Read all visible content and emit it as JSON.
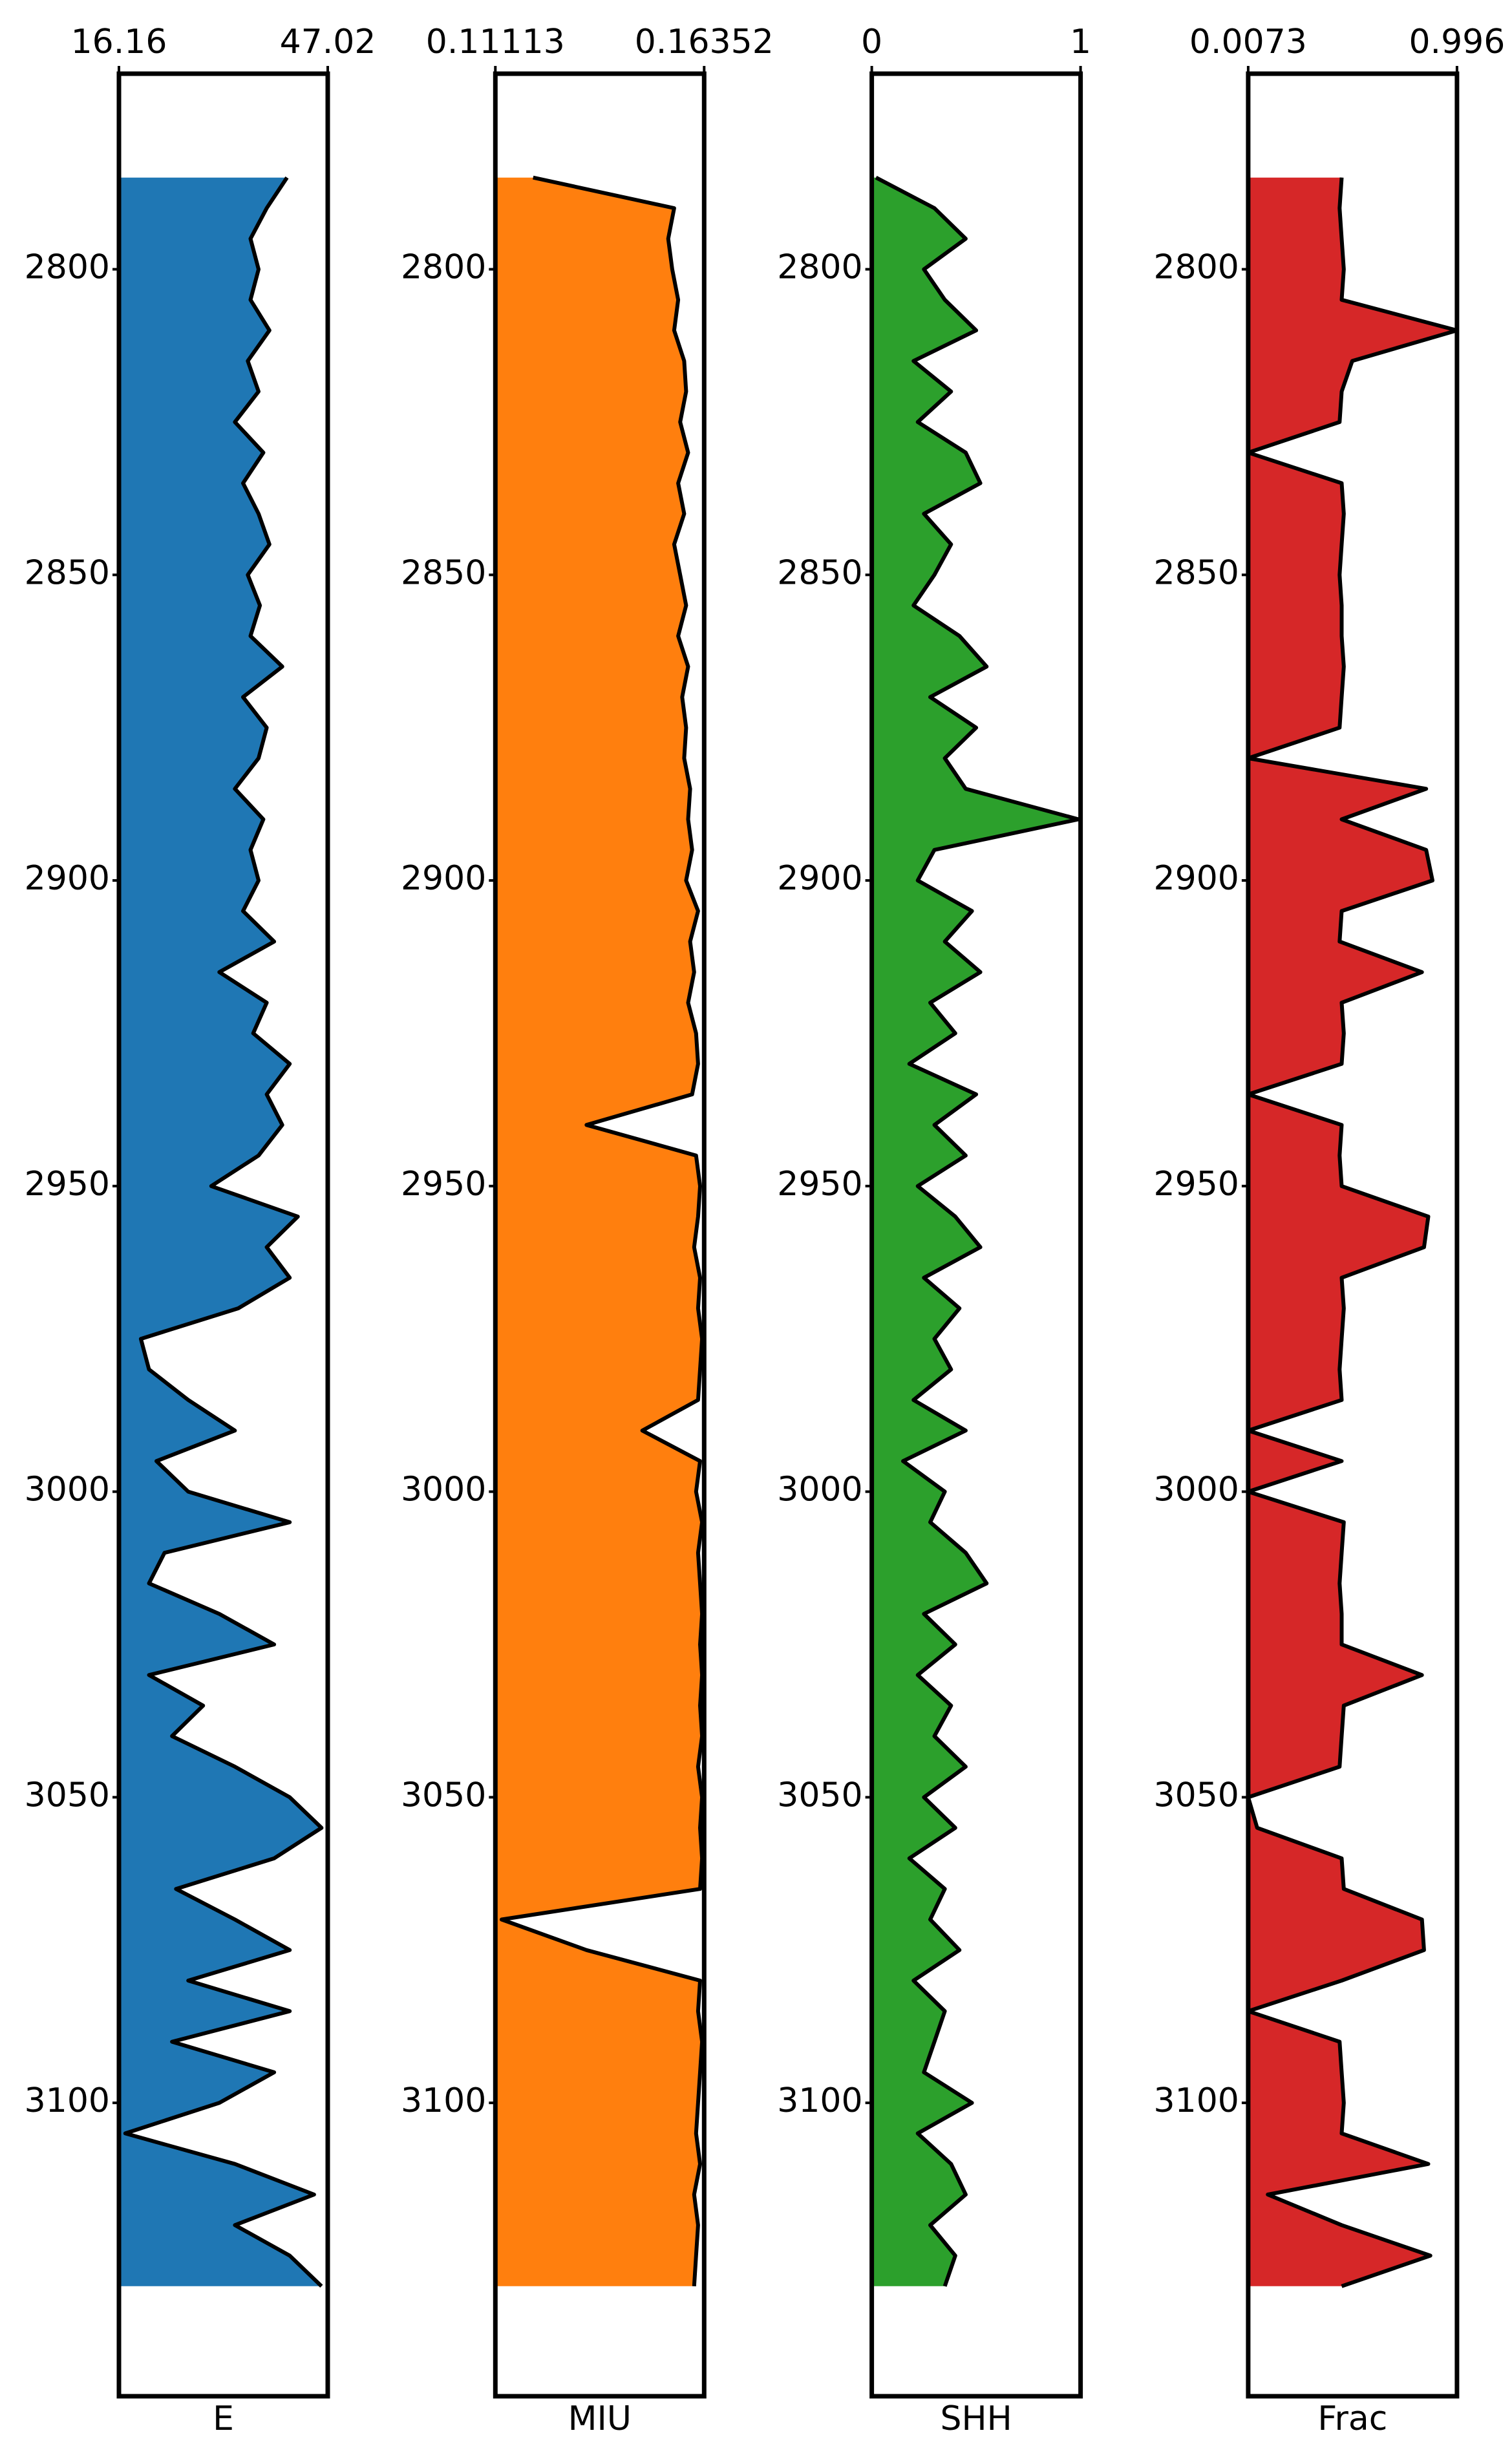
{
  "chart_data": {
    "type": "well-log",
    "y": [
      2785,
      2790,
      2795,
      2800,
      2805,
      2810,
      2815,
      2820,
      2825,
      2830,
      2835,
      2840,
      2845,
      2850,
      2855,
      2860,
      2865,
      2870,
      2875,
      2880,
      2885,
      2890,
      2895,
      2900,
      2905,
      2910,
      2915,
      2920,
      2925,
      2930,
      2935,
      2940,
      2945,
      2950,
      2955,
      2960,
      2965,
      2970,
      2975,
      2980,
      2985,
      2990,
      2995,
      3000,
      3005,
      3010,
      3015,
      3020,
      3025,
      3030,
      3035,
      3040,
      3045,
      3050,
      3055,
      3060,
      3065,
      3070,
      3075,
      3080,
      3085,
      3090,
      3095,
      3100,
      3105,
      3110,
      3115,
      3120,
      3125,
      3130
    ],
    "ylim": [
      2768,
      3148
    ],
    "y_inverted": true,
    "yticks": [
      2800,
      2850,
      2900,
      2950,
      3000,
      3050,
      3100
    ],
    "series": [
      {
        "name": "E",
        "color": "#1f77b4",
        "xlim": [
          16.16,
          47.02
        ],
        "xticks": [
          16.16,
          47.02
        ],
        "values": [
          41.0,
          38.0,
          35.6,
          36.8,
          35.6,
          38.4,
          35.2,
          36.8,
          33.3,
          37.5,
          34.5,
          36.8,
          38.4,
          35.2,
          37.0,
          35.6,
          40.3,
          34.5,
          38.0,
          36.8,
          33.3,
          37.5,
          35.6,
          36.8,
          34.5,
          39.1,
          31.0,
          38.0,
          36.0,
          41.4,
          38.0,
          40.3,
          36.8,
          29.8,
          42.6,
          38.0,
          41.4,
          33.8,
          19.4,
          20.6,
          26.4,
          33.3,
          21.7,
          26.4,
          41.4,
          22.9,
          20.6,
          31.0,
          39.1,
          20.6,
          28.6,
          24.0,
          33.3,
          41.4,
          46.1,
          39.1,
          24.6,
          33.3,
          41.4,
          26.4,
          41.4,
          24.0,
          39.1,
          31.0,
          17.1,
          33.3,
          45.0,
          33.3,
          41.4,
          46.1
        ]
      },
      {
        "name": "MIU",
        "color": "#ff7f0e",
        "xlim": [
          0.11113,
          0.16352
        ],
        "xticks": [
          0.11113,
          0.16352
        ],
        "values": [
          0.1206,
          0.156,
          0.1545,
          0.1555,
          0.157,
          0.156,
          0.1585,
          0.159,
          0.1575,
          0.1595,
          0.157,
          0.1585,
          0.156,
          0.1575,
          0.159,
          0.157,
          0.1595,
          0.158,
          0.159,
          0.1585,
          0.16,
          0.1595,
          0.1605,
          0.159,
          0.162,
          0.16,
          0.161,
          0.1595,
          0.1615,
          0.162,
          0.1605,
          0.134,
          0.1615,
          0.1625,
          0.162,
          0.161,
          0.1625,
          0.162,
          0.163,
          0.1625,
          0.162,
          0.148,
          0.1625,
          0.1615,
          0.163,
          0.162,
          0.1625,
          0.163,
          0.1625,
          0.163,
          0.1625,
          0.163,
          0.162,
          0.163,
          0.1625,
          0.163,
          0.1625,
          0.1127,
          0.134,
          0.1625,
          0.162,
          0.163,
          0.1625,
          0.162,
          0.1615,
          0.1625,
          0.161,
          0.162,
          0.1615,
          0.161
        ]
      },
      {
        "name": "SHH",
        "color": "#2ca02c",
        "xlim": [
          0,
          1
        ],
        "xticks": [
          0,
          1
        ],
        "values": [
          0.02,
          0.3,
          0.45,
          0.25,
          0.35,
          0.5,
          0.2,
          0.38,
          0.22,
          0.45,
          0.52,
          0.25,
          0.38,
          0.3,
          0.2,
          0.42,
          0.55,
          0.28,
          0.5,
          0.35,
          0.45,
          0.99,
          0.3,
          0.22,
          0.48,
          0.35,
          0.52,
          0.28,
          0.4,
          0.18,
          0.5,
          0.3,
          0.45,
          0.22,
          0.4,
          0.52,
          0.25,
          0.42,
          0.3,
          0.38,
          0.2,
          0.45,
          0.15,
          0.35,
          0.28,
          0.45,
          0.55,
          0.25,
          0.4,
          0.22,
          0.38,
          0.3,
          0.45,
          0.25,
          0.4,
          0.18,
          0.35,
          0.28,
          0.42,
          0.2,
          0.35,
          0.3,
          0.25,
          0.48,
          0.22,
          0.38,
          0.45,
          0.28,
          0.4,
          0.35
        ]
      },
      {
        "name": "Frac",
        "color": "#d62728",
        "xlim": [
          0.0073,
          0.996
        ],
        "xticks": [
          0.0073,
          0.996
        ],
        "values": [
          0.45,
          0.44,
          0.45,
          0.46,
          0.45,
          0.996,
          0.5,
          0.45,
          0.44,
          0.0073,
          0.45,
          0.46,
          0.45,
          0.44,
          0.45,
          0.45,
          0.46,
          0.45,
          0.44,
          0.0073,
          0.85,
          0.45,
          0.85,
          0.88,
          0.45,
          0.44,
          0.83,
          0.45,
          0.46,
          0.45,
          0.0073,
          0.45,
          0.44,
          0.45,
          0.86,
          0.84,
          0.45,
          0.46,
          0.45,
          0.44,
          0.45,
          0.0073,
          0.45,
          0.0073,
          0.46,
          0.45,
          0.44,
          0.45,
          0.45,
          0.83,
          0.46,
          0.45,
          0.44,
          0.0073,
          0.05,
          0.45,
          0.46,
          0.83,
          0.84,
          0.45,
          0.0073,
          0.44,
          0.45,
          0.46,
          0.45,
          0.86,
          0.1,
          0.45,
          0.87,
          0.45
        ]
      }
    ]
  }
}
